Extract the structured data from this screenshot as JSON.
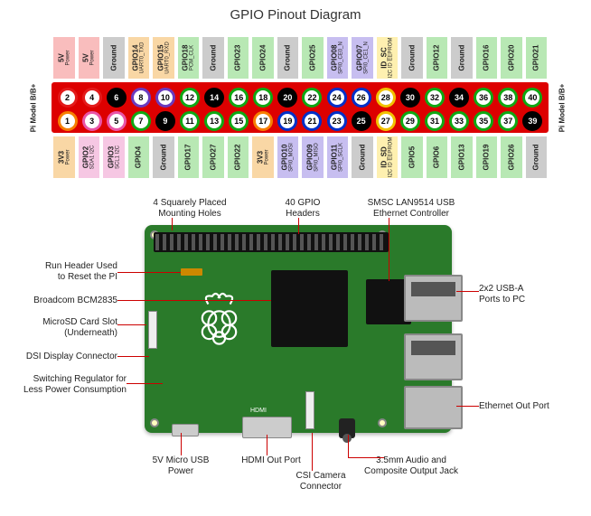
{
  "title": "GPIO Pinout Diagram",
  "model_label": "Pi Model B/B+",
  "colors": {
    "power": "#e31b1b",
    "ground": "#000000",
    "gpio_green": "#0fa813",
    "gpio_blue": "#0030c8",
    "gpio_orange": "#f77f00",
    "id": "#f2c200",
    "pink": "#e955a8",
    "purple": "#6a3bbf",
    "filled_bg": "#ffffff",
    "leader": "#cc0000",
    "board": "#2a7a2a"
  },
  "top_labels": [
    {
      "text": "5V",
      "sub": "Power",
      "bg": "#f9bdbd"
    },
    {
      "text": "5V",
      "sub": "Power",
      "bg": "#f9bdbd"
    },
    {
      "text": "Ground",
      "sub": "",
      "bg": "#cccccc"
    },
    {
      "text": "GPIO14",
      "sub": "UART0_TXD",
      "bg": "#f9d7a5"
    },
    {
      "text": "GPIO15",
      "sub": "UART0_RXD",
      "bg": "#f9d7a5"
    },
    {
      "text": "GPIO18",
      "sub": "PCM_CLK",
      "bg": "#b8e8b4"
    },
    {
      "text": "Ground",
      "sub": "",
      "bg": "#cccccc"
    },
    {
      "text": "GPIO23",
      "sub": "",
      "bg": "#b8e8b4"
    },
    {
      "text": "GPIO24",
      "sub": "",
      "bg": "#b8e8b4"
    },
    {
      "text": "Ground",
      "sub": "",
      "bg": "#cccccc"
    },
    {
      "text": "GPIO25",
      "sub": "",
      "bg": "#b8e8b4"
    },
    {
      "text": "GPIO08",
      "sub": "SPI0_CE0_N",
      "bg": "#c7bef0"
    },
    {
      "text": "GPIO07",
      "sub": "SPI0_CE1_N",
      "bg": "#c7bef0"
    },
    {
      "text": "ID_SC",
      "sub": "I2C ID EEPROM",
      "bg": "#fef0b0"
    },
    {
      "text": "Ground",
      "sub": "",
      "bg": "#cccccc"
    },
    {
      "text": "GPIO12",
      "sub": "",
      "bg": "#b8e8b4"
    },
    {
      "text": "Ground",
      "sub": "",
      "bg": "#cccccc"
    },
    {
      "text": "GPIO16",
      "sub": "",
      "bg": "#b8e8b4"
    },
    {
      "text": "GPIO20",
      "sub": "",
      "bg": "#b8e8b4"
    },
    {
      "text": "GPIO21",
      "sub": "",
      "bg": "#b8e8b4"
    }
  ],
  "bottom_labels": [
    {
      "text": "3V3",
      "sub": "Power",
      "bg": "#f9d7a5"
    },
    {
      "text": "GPIO2",
      "sub": "SDA1 I2C",
      "bg": "#f6c7e3"
    },
    {
      "text": "GPIO3",
      "sub": "SCL1 I2C",
      "bg": "#f6c7e3"
    },
    {
      "text": "GPIO4",
      "sub": "",
      "bg": "#b8e8b4"
    },
    {
      "text": "Ground",
      "sub": "",
      "bg": "#cccccc"
    },
    {
      "text": "GPIO17",
      "sub": "",
      "bg": "#b8e8b4"
    },
    {
      "text": "GPIO27",
      "sub": "",
      "bg": "#b8e8b4"
    },
    {
      "text": "GPIO22",
      "sub": "",
      "bg": "#b8e8b4"
    },
    {
      "text": "3V3",
      "sub": "Power",
      "bg": "#f9d7a5"
    },
    {
      "text": "GPIO10",
      "sub": "SPI0_MOSI",
      "bg": "#c7bef0"
    },
    {
      "text": "GPIO09",
      "sub": "SPI0_MISO",
      "bg": "#c7bef0"
    },
    {
      "text": "GPIO11",
      "sub": "SPI0_SCLK",
      "bg": "#c7bef0"
    },
    {
      "text": "Ground",
      "sub": "",
      "bg": "#cccccc"
    },
    {
      "text": "ID_SD",
      "sub": "I2C ID EEPROM",
      "bg": "#fef0b0"
    },
    {
      "text": "GPIO5",
      "sub": "",
      "bg": "#b8e8b4"
    },
    {
      "text": "GPIO6",
      "sub": "",
      "bg": "#b8e8b4"
    },
    {
      "text": "GPIO13",
      "sub": "",
      "bg": "#b8e8b4"
    },
    {
      "text": "GPIO19",
      "sub": "",
      "bg": "#b8e8b4"
    },
    {
      "text": "GPIO26",
      "sub": "",
      "bg": "#b8e8b4"
    },
    {
      "text": "Ground",
      "sub": "",
      "bg": "#cccccc"
    }
  ],
  "pins_top": [
    {
      "n": 2,
      "ring": "#e31b1b",
      "filled": false
    },
    {
      "n": 4,
      "ring": "#e31b1b",
      "filled": false
    },
    {
      "n": 6,
      "ring": "#000000",
      "filled": true
    },
    {
      "n": 8,
      "ring": "#6a3bbf",
      "filled": false
    },
    {
      "n": 10,
      "ring": "#6a3bbf",
      "filled": false
    },
    {
      "n": 12,
      "ring": "#0fa813",
      "filled": false
    },
    {
      "n": 14,
      "ring": "#000000",
      "filled": true
    },
    {
      "n": 16,
      "ring": "#0fa813",
      "filled": false
    },
    {
      "n": 18,
      "ring": "#0fa813",
      "filled": false
    },
    {
      "n": 20,
      "ring": "#000000",
      "filled": true
    },
    {
      "n": 22,
      "ring": "#0fa813",
      "filled": false
    },
    {
      "n": 24,
      "ring": "#0030c8",
      "filled": false
    },
    {
      "n": 26,
      "ring": "#0030c8",
      "filled": false
    },
    {
      "n": 28,
      "ring": "#f2c200",
      "filled": false
    },
    {
      "n": 30,
      "ring": "#000000",
      "filled": true
    },
    {
      "n": 32,
      "ring": "#0fa813",
      "filled": false
    },
    {
      "n": 34,
      "ring": "#000000",
      "filled": true
    },
    {
      "n": 36,
      "ring": "#0fa813",
      "filled": false
    },
    {
      "n": 38,
      "ring": "#0fa813",
      "filled": false
    },
    {
      "n": 40,
      "ring": "#0fa813",
      "filled": false
    }
  ],
  "pins_bottom": [
    {
      "n": 1,
      "ring": "#f77f00",
      "filled": false
    },
    {
      "n": 3,
      "ring": "#e955a8",
      "filled": false
    },
    {
      "n": 5,
      "ring": "#e955a8",
      "filled": false
    },
    {
      "n": 7,
      "ring": "#0fa813",
      "filled": false
    },
    {
      "n": 9,
      "ring": "#000000",
      "filled": true
    },
    {
      "n": 11,
      "ring": "#0fa813",
      "filled": false
    },
    {
      "n": 13,
      "ring": "#0fa813",
      "filled": false
    },
    {
      "n": 15,
      "ring": "#0fa813",
      "filled": false
    },
    {
      "n": 17,
      "ring": "#f77f00",
      "filled": false
    },
    {
      "n": 19,
      "ring": "#0030c8",
      "filled": false
    },
    {
      "n": 21,
      "ring": "#0030c8",
      "filled": false
    },
    {
      "n": 23,
      "ring": "#0030c8",
      "filled": false
    },
    {
      "n": 25,
      "ring": "#000000",
      "filled": true
    },
    {
      "n": 27,
      "ring": "#f2c200",
      "filled": false
    },
    {
      "n": 29,
      "ring": "#0fa813",
      "filled": false
    },
    {
      "n": 31,
      "ring": "#0fa813",
      "filled": false
    },
    {
      "n": 33,
      "ring": "#0fa813",
      "filled": false
    },
    {
      "n": 35,
      "ring": "#0fa813",
      "filled": false
    },
    {
      "n": 37,
      "ring": "#0fa813",
      "filled": false
    },
    {
      "n": 39,
      "ring": "#000000",
      "filled": true
    }
  ],
  "callouts": {
    "c1": "4 Squarely Placed\nMounting Holes",
    "c2": "40 GPIO\nHeaders",
    "c3": "SMSC LAN9514 USB\nEthernet Controller",
    "c4": "Run Header Used\nto Reset the PI",
    "c5": "Broadcom BCM2835",
    "c6": "MicroSD Card Slot\n(Underneath)",
    "c7": "DSI Display Connector",
    "c8": "Switching Regulator for\nLess Power Consumption",
    "c9": "2x2 USB-A\nPorts to PC",
    "c10": "Ethernet Out Port",
    "c11": "5V Micro USB\nPower",
    "c12": "HDMI Out Port",
    "c13": "CSI Camera\nConnector",
    "c14": "3.5mm Audio and\nComposite Output Jack"
  }
}
